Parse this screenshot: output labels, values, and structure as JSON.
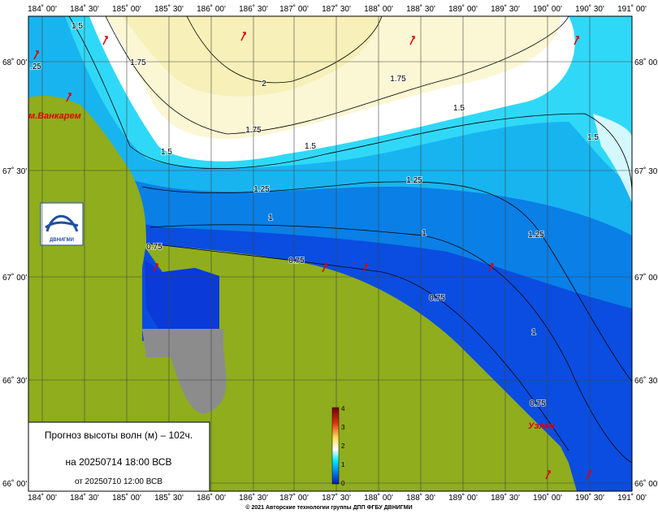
{
  "map": {
    "longitudes": [
      "184˚ 00'",
      "184˚ 30'",
      "185˚ 00'",
      "185˚ 30'",
      "186˚ 00'",
      "186˚ 30'",
      "187˚ 00'",
      "187˚ 30'",
      "188˚ 00'",
      "188˚ 30'",
      "189˚ 00'",
      "189˚ 30'",
      "190˚ 00'",
      "190˚ 30'",
      "191˚ 00'"
    ],
    "latitudes": [
      "68˚ 00'",
      "67˚ 30'",
      "67˚ 00'",
      "66˚ 30'",
      "66˚ 00'"
    ],
    "contour_labels": [
      "1.5",
      "1.75",
      "2",
      "1.75",
      "1.5",
      "1.75",
      "1.5",
      "1.5",
      "1.5",
      "1.25",
      "1.25",
      "1",
      "1",
      "1.25",
      "0.75",
      "0.75",
      "0.75",
      "1",
      "0.75",
      ".25"
    ],
    "places": [
      "м.Ванкарем",
      "Уэлен"
    ],
    "logo": "ДВНИГМИ",
    "colorbar_ticks": [
      "4",
      "3",
      "2",
      "1",
      "0"
    ]
  },
  "info": {
    "title": "Прогноз высоты волн (м) – 102ч.",
    "valid": "на 20250714 18:00 ВСВ",
    "issued": "от 20250710 12:00 ВСВ"
  },
  "footer": "© 2021 Авторские технологии группы ДПП ФГБУ ДВНИГМИ"
}
